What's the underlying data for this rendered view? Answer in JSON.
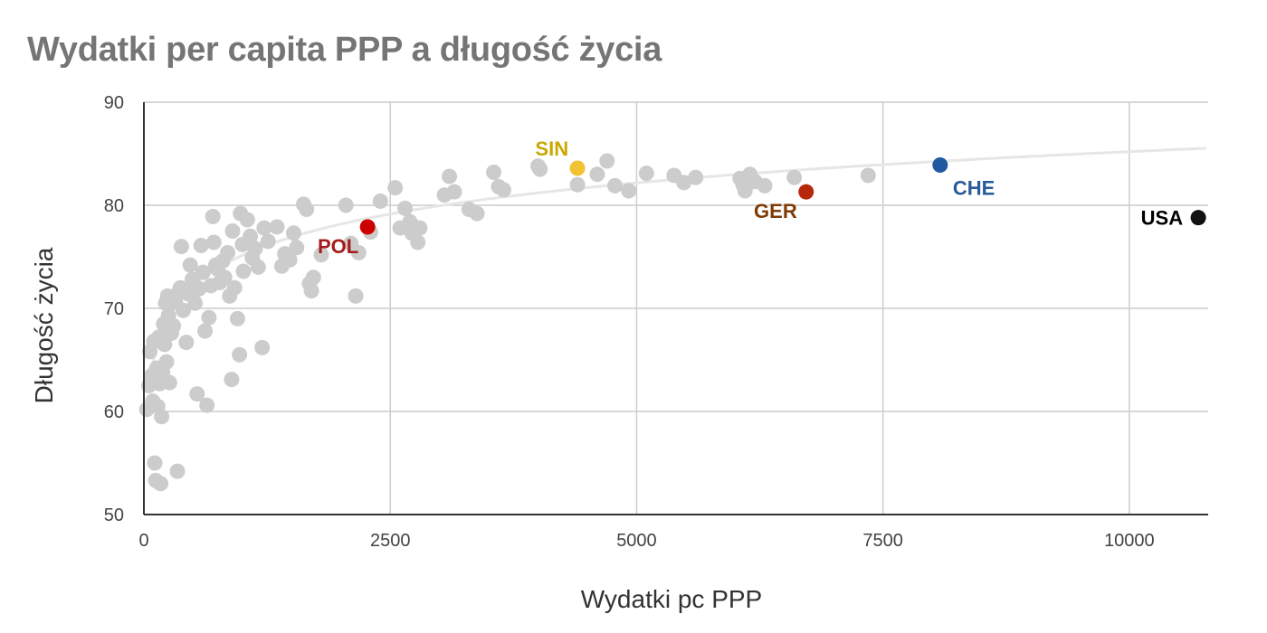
{
  "chart_data": {
    "type": "scatter",
    "title": "Wydatki per capita PPP a długość życia",
    "xlabel": "Wydatki pc PPP",
    "ylabel": "Długość życia",
    "xlim": [
      0,
      10800
    ],
    "ylim": [
      50,
      90
    ],
    "x_ticks": [
      0,
      2500,
      5000,
      7500,
      10000
    ],
    "y_ticks": [
      50,
      60,
      70,
      80,
      90
    ],
    "grid": true,
    "legend": "none",
    "trendline": {
      "kind": "logarithmic",
      "color": "#e6e6e6"
    },
    "background_points_color": "#cccccc",
    "background_points": [
      [
        30,
        60.2
      ],
      [
        50,
        62.5
      ],
      [
        60,
        65.8
      ],
      [
        80,
        63.5
      ],
      [
        90,
        61
      ],
      [
        100,
        66.8
      ],
      [
        110,
        55
      ],
      [
        120,
        53.3
      ],
      [
        130,
        64.2
      ],
      [
        140,
        60.5
      ],
      [
        150,
        67.2
      ],
      [
        160,
        62.7
      ],
      [
        170,
        53
      ],
      [
        180,
        59.5
      ],
      [
        190,
        63.8
      ],
      [
        200,
        68.5
      ],
      [
        210,
        66.5
      ],
      [
        220,
        70.5
      ],
      [
        230,
        64.8
      ],
      [
        240,
        71.2
      ],
      [
        250,
        69.3
      ],
      [
        260,
        62.8
      ],
      [
        280,
        67.6
      ],
      [
        300,
        68.3
      ],
      [
        320,
        70.6
      ],
      [
        340,
        54.2
      ],
      [
        350,
        71.5
      ],
      [
        370,
        72
      ],
      [
        380,
        76
      ],
      [
        400,
        69.8
      ],
      [
        430,
        66.7
      ],
      [
        450,
        71.4
      ],
      [
        470,
        74.2
      ],
      [
        490,
        72.8
      ],
      [
        520,
        70.5
      ],
      [
        540,
        61.7
      ],
      [
        560,
        71.9
      ],
      [
        580,
        76.1
      ],
      [
        600,
        73.5
      ],
      [
        620,
        67.8
      ],
      [
        640,
        60.6
      ],
      [
        660,
        69.1
      ],
      [
        680,
        72.2
      ],
      [
        700,
        78.9
      ],
      [
        710,
        76.4
      ],
      [
        730,
        74.2
      ],
      [
        750,
        73.8
      ],
      [
        770,
        72.5
      ],
      [
        800,
        74.6
      ],
      [
        820,
        73
      ],
      [
        850,
        75.4
      ],
      [
        870,
        71.2
      ],
      [
        890,
        63.1
      ],
      [
        900,
        77.5
      ],
      [
        920,
        72
      ],
      [
        950,
        69
      ],
      [
        970,
        65.5
      ],
      [
        980,
        79.2
      ],
      [
        1000,
        76.2
      ],
      [
        1010,
        73.6
      ],
      [
        1050,
        78.6
      ],
      [
        1080,
        77
      ],
      [
        1100,
        74.9
      ],
      [
        1130,
        75.8
      ],
      [
        1160,
        74
      ],
      [
        1200,
        66.2
      ],
      [
        1220,
        77.8
      ],
      [
        1260,
        76.5
      ],
      [
        1350,
        77.9
      ],
      [
        1400,
        74.1
      ],
      [
        1430,
        75.3
      ],
      [
        1480,
        74.7
      ],
      [
        1520,
        77.3
      ],
      [
        1550,
        75.9
      ],
      [
        1620,
        80.1
      ],
      [
        1650,
        79.6
      ],
      [
        1680,
        72.4
      ],
      [
        1700,
        71.7
      ],
      [
        1720,
        73
      ],
      [
        1800,
        75.2
      ],
      [
        2050,
        80
      ],
      [
        2100,
        76.3
      ],
      [
        2150,
        71.2
      ],
      [
        2180,
        75.4
      ],
      [
        2300,
        77.4
      ],
      [
        2400,
        80.4
      ],
      [
        2550,
        81.7
      ],
      [
        2600,
        77.8
      ],
      [
        2650,
        79.7
      ],
      [
        2700,
        78.4
      ],
      [
        2720,
        77.3
      ],
      [
        2780,
        76.4
      ],
      [
        2800,
        77.8
      ],
      [
        3050,
        81
      ],
      [
        3100,
        82.8
      ],
      [
        3150,
        81.3
      ],
      [
        3300,
        79.6
      ],
      [
        3380,
        79.2
      ],
      [
        3550,
        83.2
      ],
      [
        3600,
        81.8
      ],
      [
        3650,
        81.5
      ],
      [
        4000,
        83.8
      ],
      [
        4020,
        83.5
      ],
      [
        4400,
        82
      ],
      [
        4600,
        83
      ],
      [
        4700,
        84.3
      ],
      [
        4780,
        81.9
      ],
      [
        4920,
        81.4
      ],
      [
        5100,
        83.1
      ],
      [
        5380,
        82.9
      ],
      [
        5480,
        82.2
      ],
      [
        5600,
        82.7
      ],
      [
        6050,
        82.6
      ],
      [
        6080,
        82
      ],
      [
        6100,
        81.4
      ],
      [
        6150,
        83
      ],
      [
        6200,
        82.3
      ],
      [
        6300,
        81.9
      ],
      [
        6600,
        82.7
      ],
      [
        7350,
        82.9
      ]
    ],
    "highlighted_points": [
      {
        "label": "POL",
        "x": 2270,
        "y": 77.9,
        "color": "#cc0000",
        "label_color": "#a61c1c",
        "label_pos": "below-left"
      },
      {
        "label": "SIN",
        "x": 4400,
        "y": 83.6,
        "color": "#f1c232",
        "label_color": "#c9a800",
        "label_pos": "above-left"
      },
      {
        "label": "GER",
        "x": 6720,
        "y": 81.3,
        "color": "#b7280b",
        "label_color": "#7f3a05",
        "label_pos": "below-left"
      },
      {
        "label": "CHE",
        "x": 8080,
        "y": 83.9,
        "color": "#1f5aa0",
        "label_color": "#2a5a9a",
        "label_pos": "below-right"
      },
      {
        "label": "USA",
        "x": 10700,
        "y": 78.8,
        "color": "#111111",
        "label_color": "#000000",
        "label_pos": "left"
      }
    ]
  }
}
